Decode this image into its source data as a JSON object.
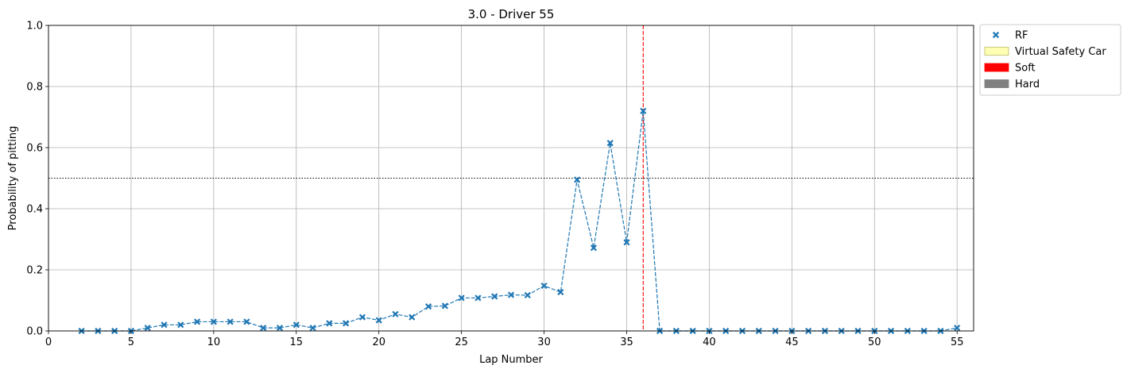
{
  "chart_data": {
    "type": "scatter",
    "title": "3.0 - Driver 55",
    "xlabel": "Lap Number",
    "ylabel": "Probability of pitting",
    "xlim": [
      0,
      56
    ],
    "ylim": [
      0,
      1
    ],
    "xticks": [
      0,
      5,
      10,
      15,
      20,
      25,
      30,
      35,
      40,
      45,
      50,
      55
    ],
    "yticks": [
      0.0,
      0.2,
      0.4,
      0.6,
      0.8,
      1.0
    ],
    "ytick_labels": [
      "0.0",
      "0.2",
      "0.4",
      "0.6",
      "0.8",
      "1.0"
    ],
    "grid": true,
    "legend_position": "outside-top-right",
    "threshold": 0.5,
    "vertical_marker_x": 36,
    "series": [
      {
        "name": "RF",
        "color": "#1f77b4",
        "marker": "x",
        "x": [
          2,
          3,
          4,
          5,
          6,
          7,
          8,
          9,
          10,
          11,
          12,
          13,
          14,
          15,
          16,
          17,
          18,
          19,
          20,
          21,
          22,
          23,
          24,
          25,
          26,
          27,
          28,
          29,
          30,
          31,
          32,
          33,
          34,
          35,
          36,
          37,
          38,
          39,
          40,
          41,
          42,
          43,
          44,
          45,
          46,
          47,
          48,
          49,
          50,
          51,
          52,
          53,
          54,
          55
        ],
        "y": [
          0.0,
          0.0,
          0.0,
          0.0,
          0.01,
          0.02,
          0.02,
          0.03,
          0.03,
          0.03,
          0.03,
          0.01,
          0.01,
          0.02,
          0.01,
          0.025,
          0.025,
          0.045,
          0.035,
          0.055,
          0.045,
          0.08,
          0.082,
          0.108,
          0.108,
          0.113,
          0.118,
          0.117,
          0.148,
          0.127,
          0.495,
          0.272,
          0.615,
          0.29,
          0.72,
          0.0,
          0.0,
          0.0,
          0.0,
          0.0,
          0.0,
          0.0,
          0.0,
          0.0,
          0.0,
          0.0,
          0.0,
          0.0,
          0.0,
          0.0,
          0.0,
          0.0,
          0.0,
          0.01
        ]
      }
    ],
    "legend": [
      {
        "label": "RF",
        "kind": "marker",
        "color": "#1f77b4"
      },
      {
        "label": "Virtual Safety Car",
        "kind": "patch",
        "color": "#ffffb3",
        "edge": "#bdbd6a"
      },
      {
        "label": "Soft",
        "kind": "patch",
        "color": "#ff0000",
        "edge": "#ff0000"
      },
      {
        "label": "Hard",
        "kind": "patch",
        "color": "#808080",
        "edge": "#808080"
      }
    ]
  }
}
